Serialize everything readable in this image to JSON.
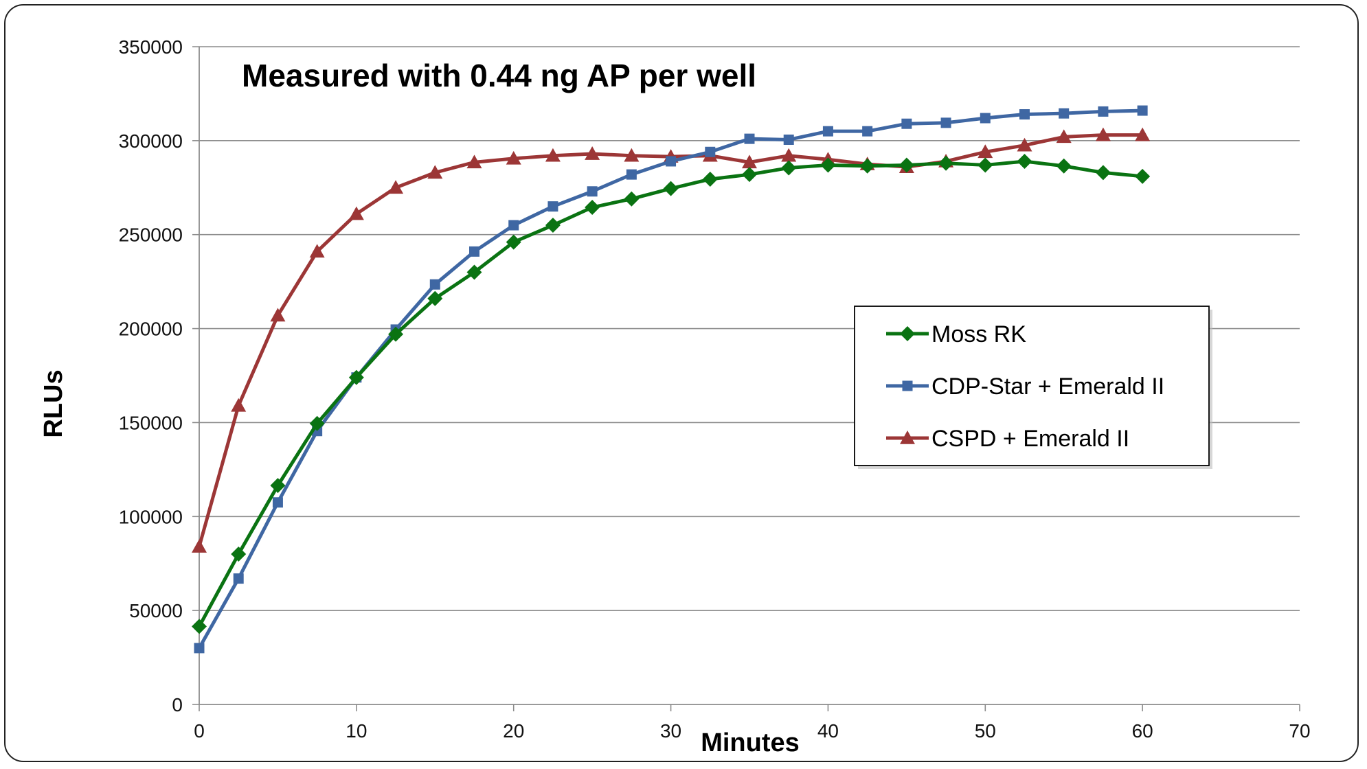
{
  "chart_data": {
    "type": "line",
    "title": "Measured with 0.44 ng AP per well",
    "xlabel": "Minutes",
    "ylabel": "RLUs",
    "xlim": [
      0,
      70
    ],
    "ylim": [
      0,
      350000
    ],
    "xticks": [
      0,
      10,
      20,
      30,
      40,
      50,
      60,
      70
    ],
    "yticks": [
      0,
      50000,
      100000,
      150000,
      200000,
      250000,
      300000,
      350000
    ],
    "grid": "horizontal",
    "legend_position": "right",
    "x": [
      0,
      2.5,
      5,
      7.5,
      10,
      12.5,
      15,
      17.5,
      20,
      22.5,
      25,
      27.5,
      30,
      32.5,
      35,
      37.5,
      40,
      42.5,
      45,
      47.5,
      50,
      52.5,
      55,
      57.5,
      60
    ],
    "series": [
      {
        "name": "Moss RK",
        "color": "#0a7312",
        "marker": "diamond",
        "values": [
          41500,
          80000,
          116500,
          149500,
          174000,
          197000,
          216000,
          230000,
          246000,
          255000,
          264500,
          269000,
          274500,
          279500,
          282000,
          285500,
          287000,
          286500,
          287000,
          288000,
          287000,
          289000,
          286500,
          283000,
          281000
        ]
      },
      {
        "name": "CDP-Star + Emerald II",
        "color": "#3f67a3",
        "marker": "square",
        "values": [
          30000,
          67000,
          107500,
          145500,
          174000,
          199500,
          223500,
          241000,
          255000,
          265000,
          273000,
          282000,
          289000,
          294000,
          301000,
          300500,
          305000,
          305000,
          309000,
          309500,
          312000,
          314000,
          314500,
          315500,
          316000
        ]
      },
      {
        "name": "CSPD + Emerald II",
        "color": "#9c3636",
        "marker": "triangle",
        "values": [
          84000,
          159000,
          207000,
          241000,
          261000,
          275000,
          283000,
          288500,
          290500,
          292000,
          293000,
          292000,
          291500,
          292000,
          288500,
          292000,
          290000,
          287500,
          286000,
          289000,
          294000,
          297500,
          302000,
          303000,
          303000
        ]
      }
    ]
  }
}
